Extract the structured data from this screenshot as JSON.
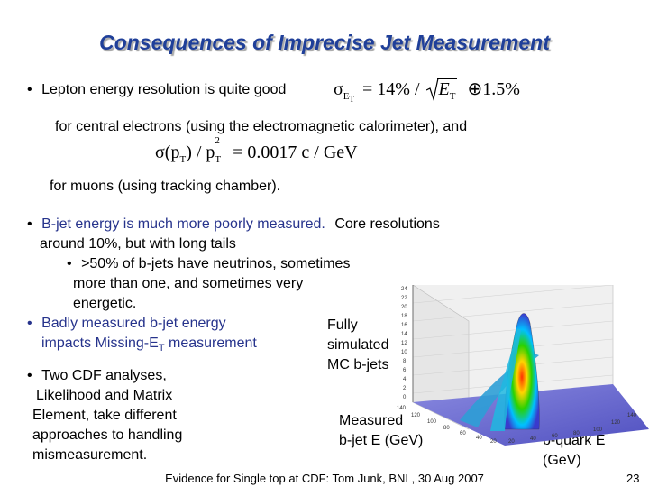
{
  "slide": {
    "title": "Consequences of Imprecise Jet Measurement",
    "b1_bullet": "•",
    "b1_text": "Lepton energy resolution is quite good",
    "eq1": {
      "sigma": "σ",
      "sub_E": "E",
      "sub_T": "T",
      "equals": "= 14% /",
      "E": "E",
      "T": "T",
      "oplus": "⊕",
      "tail": "1.5%"
    },
    "line_central": "for central electrons (using the electromagnetic calorimeter), and",
    "eq2": {
      "left": "σ(p",
      "sub1": "T",
      "mid": ") / p",
      "sub2": "T",
      "sup2": "2",
      "right": "= 0.0017  c / GeV"
    },
    "line_muons": "for muons (using tracking chamber).",
    "b2_bullet": "•",
    "b2_colored": "B-jet energy is much more poorly measured.",
    "b2_rest": "Core resolutions",
    "b2_line2": "around 10%, but with long tails",
    "b2_sub_bullet": "•",
    "b2_sub_line1": ">50% of b-jets have neutrinos, sometimes",
    "b2_sub_line2": "more than one, and sometimes very",
    "b2_sub_line3": "energetic.",
    "b3_bullet": "•",
    "b3_line1": "Badly measured b-jet energy",
    "b3_line2_a": "impacts Missing-E",
    "b3_line2_sub": "T",
    "b3_line2_b": " measurement",
    "b4_bullet": "•",
    "b4_line1": "Two CDF analyses,",
    "b4_line2": "Likelihood and Matrix",
    "b4_line3": "Element, take different",
    "b4_line4": "approaches to handling",
    "b4_line5": "mismeasurement.",
    "fig_label_1": "Fully",
    "fig_label_2": "simulated",
    "fig_label_3": "MC b-jets",
    "x_label_1": "Measured",
    "x_label_2": "b-jet E (GeV)",
    "y_label_1": "b-quark E",
    "y_label_2": "(GeV)",
    "footer": "Evidence for Single top at CDF: Tom Junk, BNL, 30 Aug 2007",
    "page_number": "23"
  },
  "plot": {
    "z_ticks": [
      "24",
      "22",
      "20",
      "18",
      "16",
      "14",
      "12",
      "10",
      "8",
      "6",
      "4",
      "2",
      "0"
    ],
    "x_ticks": [
      "140",
      "120",
      "100",
      "80",
      "60",
      "40",
      "20"
    ],
    "y_ticks": [
      "20",
      "40",
      "60",
      "80",
      "100",
      "120",
      "140"
    ]
  }
}
